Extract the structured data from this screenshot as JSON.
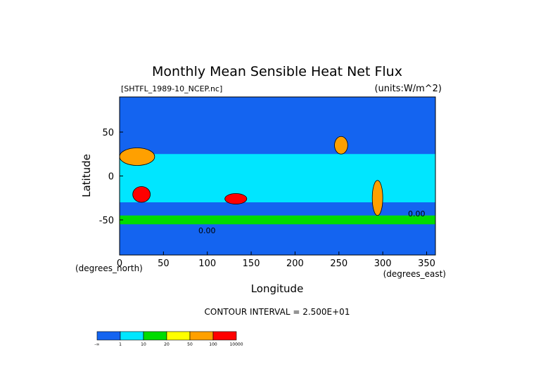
{
  "chart_data": {
    "type": "heatmap",
    "title": "Monthly Mean Sensible Heat Net Flux",
    "file_label": "[SHTFL_1989-10_NCEP.nc]",
    "units_label": "(units:W/m^2)",
    "xlabel": "Longitude",
    "ylabel": "Latitude",
    "x_unit_label": "(degrees_east)",
    "y_unit_label": "(degrees_north)",
    "xlim": [
      0,
      360
    ],
    "ylim": [
      -90,
      90
    ],
    "x_ticks": [
      0,
      50,
      100,
      150,
      200,
      250,
      300,
      350
    ],
    "y_ticks": [
      50,
      0,
      -50
    ],
    "contour_interval": "CONTOUR INTERVAL = 2.500E+01",
    "contour_label": "0.00",
    "colorbar": {
      "colors": [
        "#1464f0",
        "#00e6ff",
        "#00dc00",
        "#ffff00",
        "#ffa000",
        "#ff0000"
      ],
      "tick_labels": [
        "-∞",
        "1",
        "10",
        "20",
        "50",
        "100",
        "10000"
      ]
    },
    "regions": [
      {
        "name": "ocean-background",
        "level": 1,
        "cells": "global"
      },
      {
        "name": "tropical-ocean",
        "level": 2,
        "lat": [
          -30,
          25
        ]
      },
      {
        "name": "southern-ocean-band",
        "level": 3,
        "lat": [
          -55,
          -45
        ]
      },
      {
        "name": "sahara",
        "level": 5,
        "lon": [
          0,
          40
        ],
        "lat": [
          12,
          32
        ]
      },
      {
        "name": "southern-africa",
        "level": 6,
        "lon": [
          15,
          35
        ],
        "lat": [
          -30,
          -12
        ]
      },
      {
        "name": "australia",
        "level": 6,
        "lon": [
          120,
          145
        ],
        "lat": [
          -32,
          -20
        ]
      },
      {
        "name": "south-america-west",
        "level": 5,
        "lon": [
          288,
          300
        ],
        "lat": [
          -45,
          -5
        ]
      },
      {
        "name": "north-america-west",
        "level": 5,
        "lon": [
          245,
          260
        ],
        "lat": [
          25,
          45
        ]
      },
      {
        "name": "arctic",
        "level": 1,
        "lat": [
          65,
          90
        ]
      },
      {
        "name": "antarctica",
        "level": 1,
        "lat": [
          -90,
          -65
        ]
      }
    ]
  }
}
